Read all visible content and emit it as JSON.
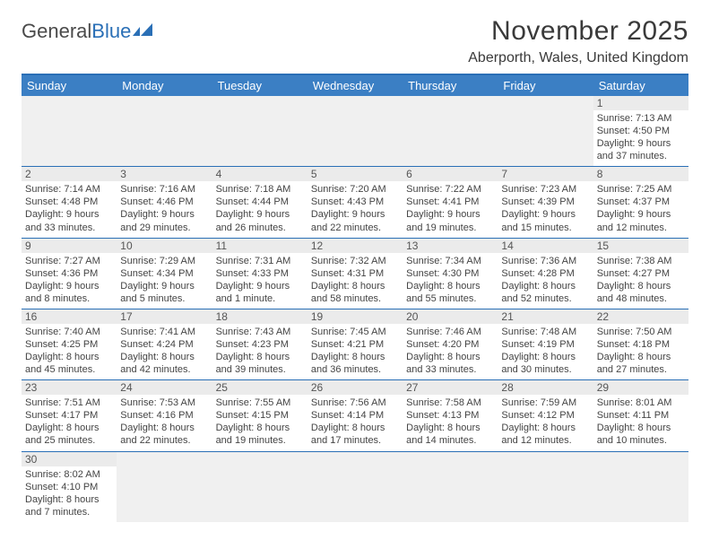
{
  "logo": {
    "word1": "General",
    "word2": "Blue"
  },
  "title": "November 2025",
  "location": "Aberporth, Wales, United Kingdom",
  "colors": {
    "header_bar": "#3b7fc4",
    "accent_border": "#2a6fb6",
    "daynum_bg": "#ebebeb",
    "empty_bg": "#f0f0f0",
    "text": "#444444"
  },
  "daysOfWeek": [
    "Sunday",
    "Monday",
    "Tuesday",
    "Wednesday",
    "Thursday",
    "Friday",
    "Saturday"
  ],
  "weeks": [
    [
      {
        "empty": true
      },
      {
        "empty": true
      },
      {
        "empty": true
      },
      {
        "empty": true
      },
      {
        "empty": true
      },
      {
        "empty": true
      },
      {
        "num": "1",
        "sunrise": "Sunrise: 7:13 AM",
        "sunset": "Sunset: 4:50 PM",
        "day1": "Daylight: 9 hours",
        "day2": "and 37 minutes."
      }
    ],
    [
      {
        "num": "2",
        "sunrise": "Sunrise: 7:14 AM",
        "sunset": "Sunset: 4:48 PM",
        "day1": "Daylight: 9 hours",
        "day2": "and 33 minutes."
      },
      {
        "num": "3",
        "sunrise": "Sunrise: 7:16 AM",
        "sunset": "Sunset: 4:46 PM",
        "day1": "Daylight: 9 hours",
        "day2": "and 29 minutes."
      },
      {
        "num": "4",
        "sunrise": "Sunrise: 7:18 AM",
        "sunset": "Sunset: 4:44 PM",
        "day1": "Daylight: 9 hours",
        "day2": "and 26 minutes."
      },
      {
        "num": "5",
        "sunrise": "Sunrise: 7:20 AM",
        "sunset": "Sunset: 4:43 PM",
        "day1": "Daylight: 9 hours",
        "day2": "and 22 minutes."
      },
      {
        "num": "6",
        "sunrise": "Sunrise: 7:22 AM",
        "sunset": "Sunset: 4:41 PM",
        "day1": "Daylight: 9 hours",
        "day2": "and 19 minutes."
      },
      {
        "num": "7",
        "sunrise": "Sunrise: 7:23 AM",
        "sunset": "Sunset: 4:39 PM",
        "day1": "Daylight: 9 hours",
        "day2": "and 15 minutes."
      },
      {
        "num": "8",
        "sunrise": "Sunrise: 7:25 AM",
        "sunset": "Sunset: 4:37 PM",
        "day1": "Daylight: 9 hours",
        "day2": "and 12 minutes."
      }
    ],
    [
      {
        "num": "9",
        "sunrise": "Sunrise: 7:27 AM",
        "sunset": "Sunset: 4:36 PM",
        "day1": "Daylight: 9 hours",
        "day2": "and 8 minutes."
      },
      {
        "num": "10",
        "sunrise": "Sunrise: 7:29 AM",
        "sunset": "Sunset: 4:34 PM",
        "day1": "Daylight: 9 hours",
        "day2": "and 5 minutes."
      },
      {
        "num": "11",
        "sunrise": "Sunrise: 7:31 AM",
        "sunset": "Sunset: 4:33 PM",
        "day1": "Daylight: 9 hours",
        "day2": "and 1 minute."
      },
      {
        "num": "12",
        "sunrise": "Sunrise: 7:32 AM",
        "sunset": "Sunset: 4:31 PM",
        "day1": "Daylight: 8 hours",
        "day2": "and 58 minutes."
      },
      {
        "num": "13",
        "sunrise": "Sunrise: 7:34 AM",
        "sunset": "Sunset: 4:30 PM",
        "day1": "Daylight: 8 hours",
        "day2": "and 55 minutes."
      },
      {
        "num": "14",
        "sunrise": "Sunrise: 7:36 AM",
        "sunset": "Sunset: 4:28 PM",
        "day1": "Daylight: 8 hours",
        "day2": "and 52 minutes."
      },
      {
        "num": "15",
        "sunrise": "Sunrise: 7:38 AM",
        "sunset": "Sunset: 4:27 PM",
        "day1": "Daylight: 8 hours",
        "day2": "and 48 minutes."
      }
    ],
    [
      {
        "num": "16",
        "sunrise": "Sunrise: 7:40 AM",
        "sunset": "Sunset: 4:25 PM",
        "day1": "Daylight: 8 hours",
        "day2": "and 45 minutes."
      },
      {
        "num": "17",
        "sunrise": "Sunrise: 7:41 AM",
        "sunset": "Sunset: 4:24 PM",
        "day1": "Daylight: 8 hours",
        "day2": "and 42 minutes."
      },
      {
        "num": "18",
        "sunrise": "Sunrise: 7:43 AM",
        "sunset": "Sunset: 4:23 PM",
        "day1": "Daylight: 8 hours",
        "day2": "and 39 minutes."
      },
      {
        "num": "19",
        "sunrise": "Sunrise: 7:45 AM",
        "sunset": "Sunset: 4:21 PM",
        "day1": "Daylight: 8 hours",
        "day2": "and 36 minutes."
      },
      {
        "num": "20",
        "sunrise": "Sunrise: 7:46 AM",
        "sunset": "Sunset: 4:20 PM",
        "day1": "Daylight: 8 hours",
        "day2": "and 33 minutes."
      },
      {
        "num": "21",
        "sunrise": "Sunrise: 7:48 AM",
        "sunset": "Sunset: 4:19 PM",
        "day1": "Daylight: 8 hours",
        "day2": "and 30 minutes."
      },
      {
        "num": "22",
        "sunrise": "Sunrise: 7:50 AM",
        "sunset": "Sunset: 4:18 PM",
        "day1": "Daylight: 8 hours",
        "day2": "and 27 minutes."
      }
    ],
    [
      {
        "num": "23",
        "sunrise": "Sunrise: 7:51 AM",
        "sunset": "Sunset: 4:17 PM",
        "day1": "Daylight: 8 hours",
        "day2": "and 25 minutes."
      },
      {
        "num": "24",
        "sunrise": "Sunrise: 7:53 AM",
        "sunset": "Sunset: 4:16 PM",
        "day1": "Daylight: 8 hours",
        "day2": "and 22 minutes."
      },
      {
        "num": "25",
        "sunrise": "Sunrise: 7:55 AM",
        "sunset": "Sunset: 4:15 PM",
        "day1": "Daylight: 8 hours",
        "day2": "and 19 minutes."
      },
      {
        "num": "26",
        "sunrise": "Sunrise: 7:56 AM",
        "sunset": "Sunset: 4:14 PM",
        "day1": "Daylight: 8 hours",
        "day2": "and 17 minutes."
      },
      {
        "num": "27",
        "sunrise": "Sunrise: 7:58 AM",
        "sunset": "Sunset: 4:13 PM",
        "day1": "Daylight: 8 hours",
        "day2": "and 14 minutes."
      },
      {
        "num": "28",
        "sunrise": "Sunrise: 7:59 AM",
        "sunset": "Sunset: 4:12 PM",
        "day1": "Daylight: 8 hours",
        "day2": "and 12 minutes."
      },
      {
        "num": "29",
        "sunrise": "Sunrise: 8:01 AM",
        "sunset": "Sunset: 4:11 PM",
        "day1": "Daylight: 8 hours",
        "day2": "and 10 minutes."
      }
    ],
    [
      {
        "num": "30",
        "sunrise": "Sunrise: 8:02 AM",
        "sunset": "Sunset: 4:10 PM",
        "day1": "Daylight: 8 hours",
        "day2": "and 7 minutes."
      },
      {
        "empty": true
      },
      {
        "empty": true
      },
      {
        "empty": true
      },
      {
        "empty": true
      },
      {
        "empty": true
      },
      {
        "empty": true
      }
    ]
  ]
}
